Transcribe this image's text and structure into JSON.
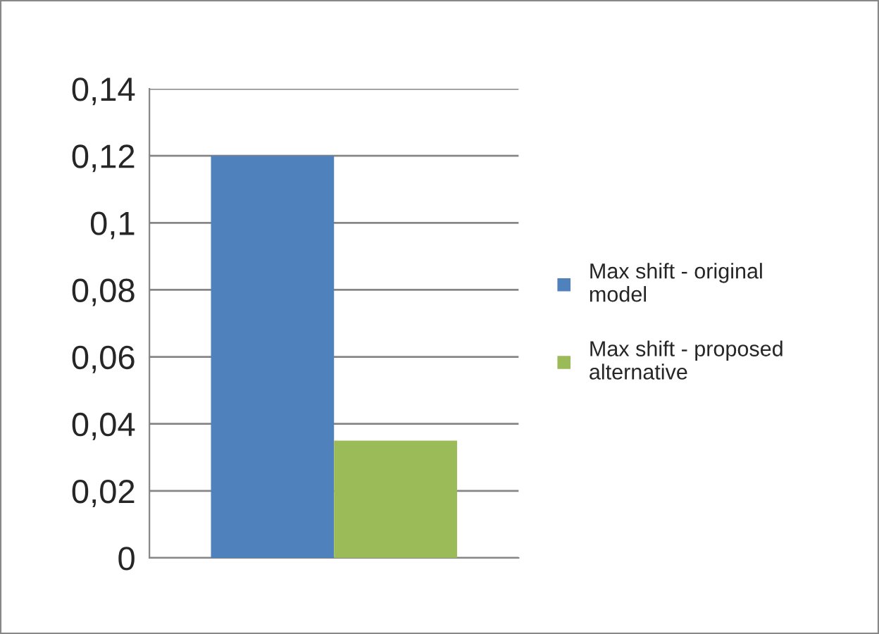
{
  "chart_data": {
    "type": "bar",
    "categories": [
      null
    ],
    "series": [
      {
        "name": "Max shift - original model",
        "color": "#4f81bd",
        "values": [
          0.12
        ]
      },
      {
        "name": "Max shift - proposed alternative",
        "color": "#9bbb59",
        "values": [
          0.035
        ]
      }
    ],
    "ylim": [
      0,
      0.14
    ],
    "yticks": [
      {
        "value": 0,
        "label": "0"
      },
      {
        "value": 0.02,
        "label": "0,02"
      },
      {
        "value": 0.04,
        "label": "0,04"
      },
      {
        "value": 0.06,
        "label": "0,06"
      },
      {
        "value": 0.08,
        "label": "0,08"
      },
      {
        "value": 0.1,
        "label": "0,1"
      },
      {
        "value": 0.12,
        "label": "0,12"
      },
      {
        "value": 0.14,
        "label": "0,14"
      }
    ],
    "grid": "y",
    "legend": "right"
  }
}
